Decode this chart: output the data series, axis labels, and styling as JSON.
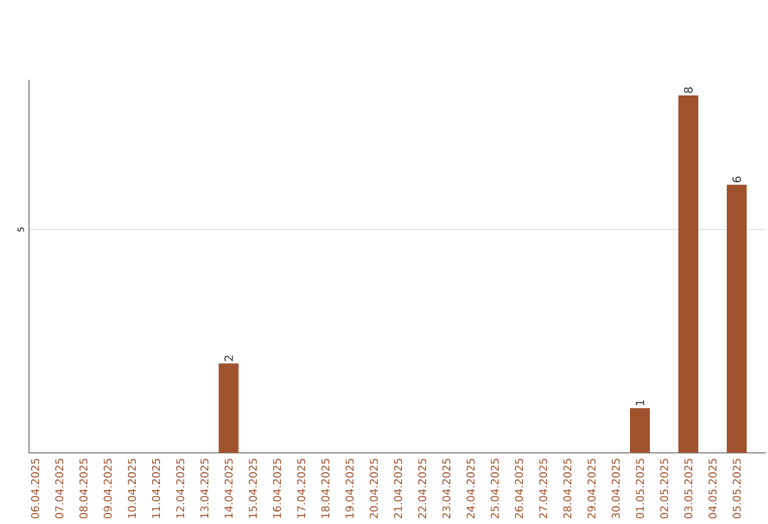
{
  "chart_data": {
    "type": "bar",
    "categories": [
      "06.04.2025",
      "07.04.2025",
      "08.04.2025",
      "09.04.2025",
      "10.04.2025",
      "11.04.2025",
      "12.04.2025",
      "13.04.2025",
      "14.04.2025",
      "15.04.2025",
      "16.04.2025",
      "17.04.2025",
      "18.04.2025",
      "19.04.2025",
      "20.04.2025",
      "21.04.2025",
      "22.04.2025",
      "23.04.2025",
      "24.04.2025",
      "25.04.2025",
      "26.04.2025",
      "27.04.2025",
      "28.04.2025",
      "29.04.2025",
      "30.04.2025",
      "01.05.2025",
      "02.05.2025",
      "03.05.2025",
      "04.05.2025",
      "05.05.2025"
    ],
    "values": [
      0,
      0,
      0,
      0,
      0,
      0,
      0,
      0,
      2,
      0,
      0,
      0,
      0,
      0,
      0,
      0,
      0,
      0,
      0,
      0,
      0,
      0,
      0,
      0,
      0,
      1,
      0,
      8,
      0,
      6
    ],
    "value_labels": [
      null,
      null,
      null,
      null,
      null,
      null,
      null,
      null,
      "2",
      null,
      null,
      null,
      null,
      null,
      null,
      null,
      null,
      null,
      null,
      null,
      null,
      null,
      null,
      null,
      null,
      "1",
      null,
      "8",
      null,
      "6"
    ],
    "color": "#a0522d",
    "ylim": [
      0,
      8.35
    ],
    "yticks": [
      5
    ],
    "grid": "y"
  }
}
